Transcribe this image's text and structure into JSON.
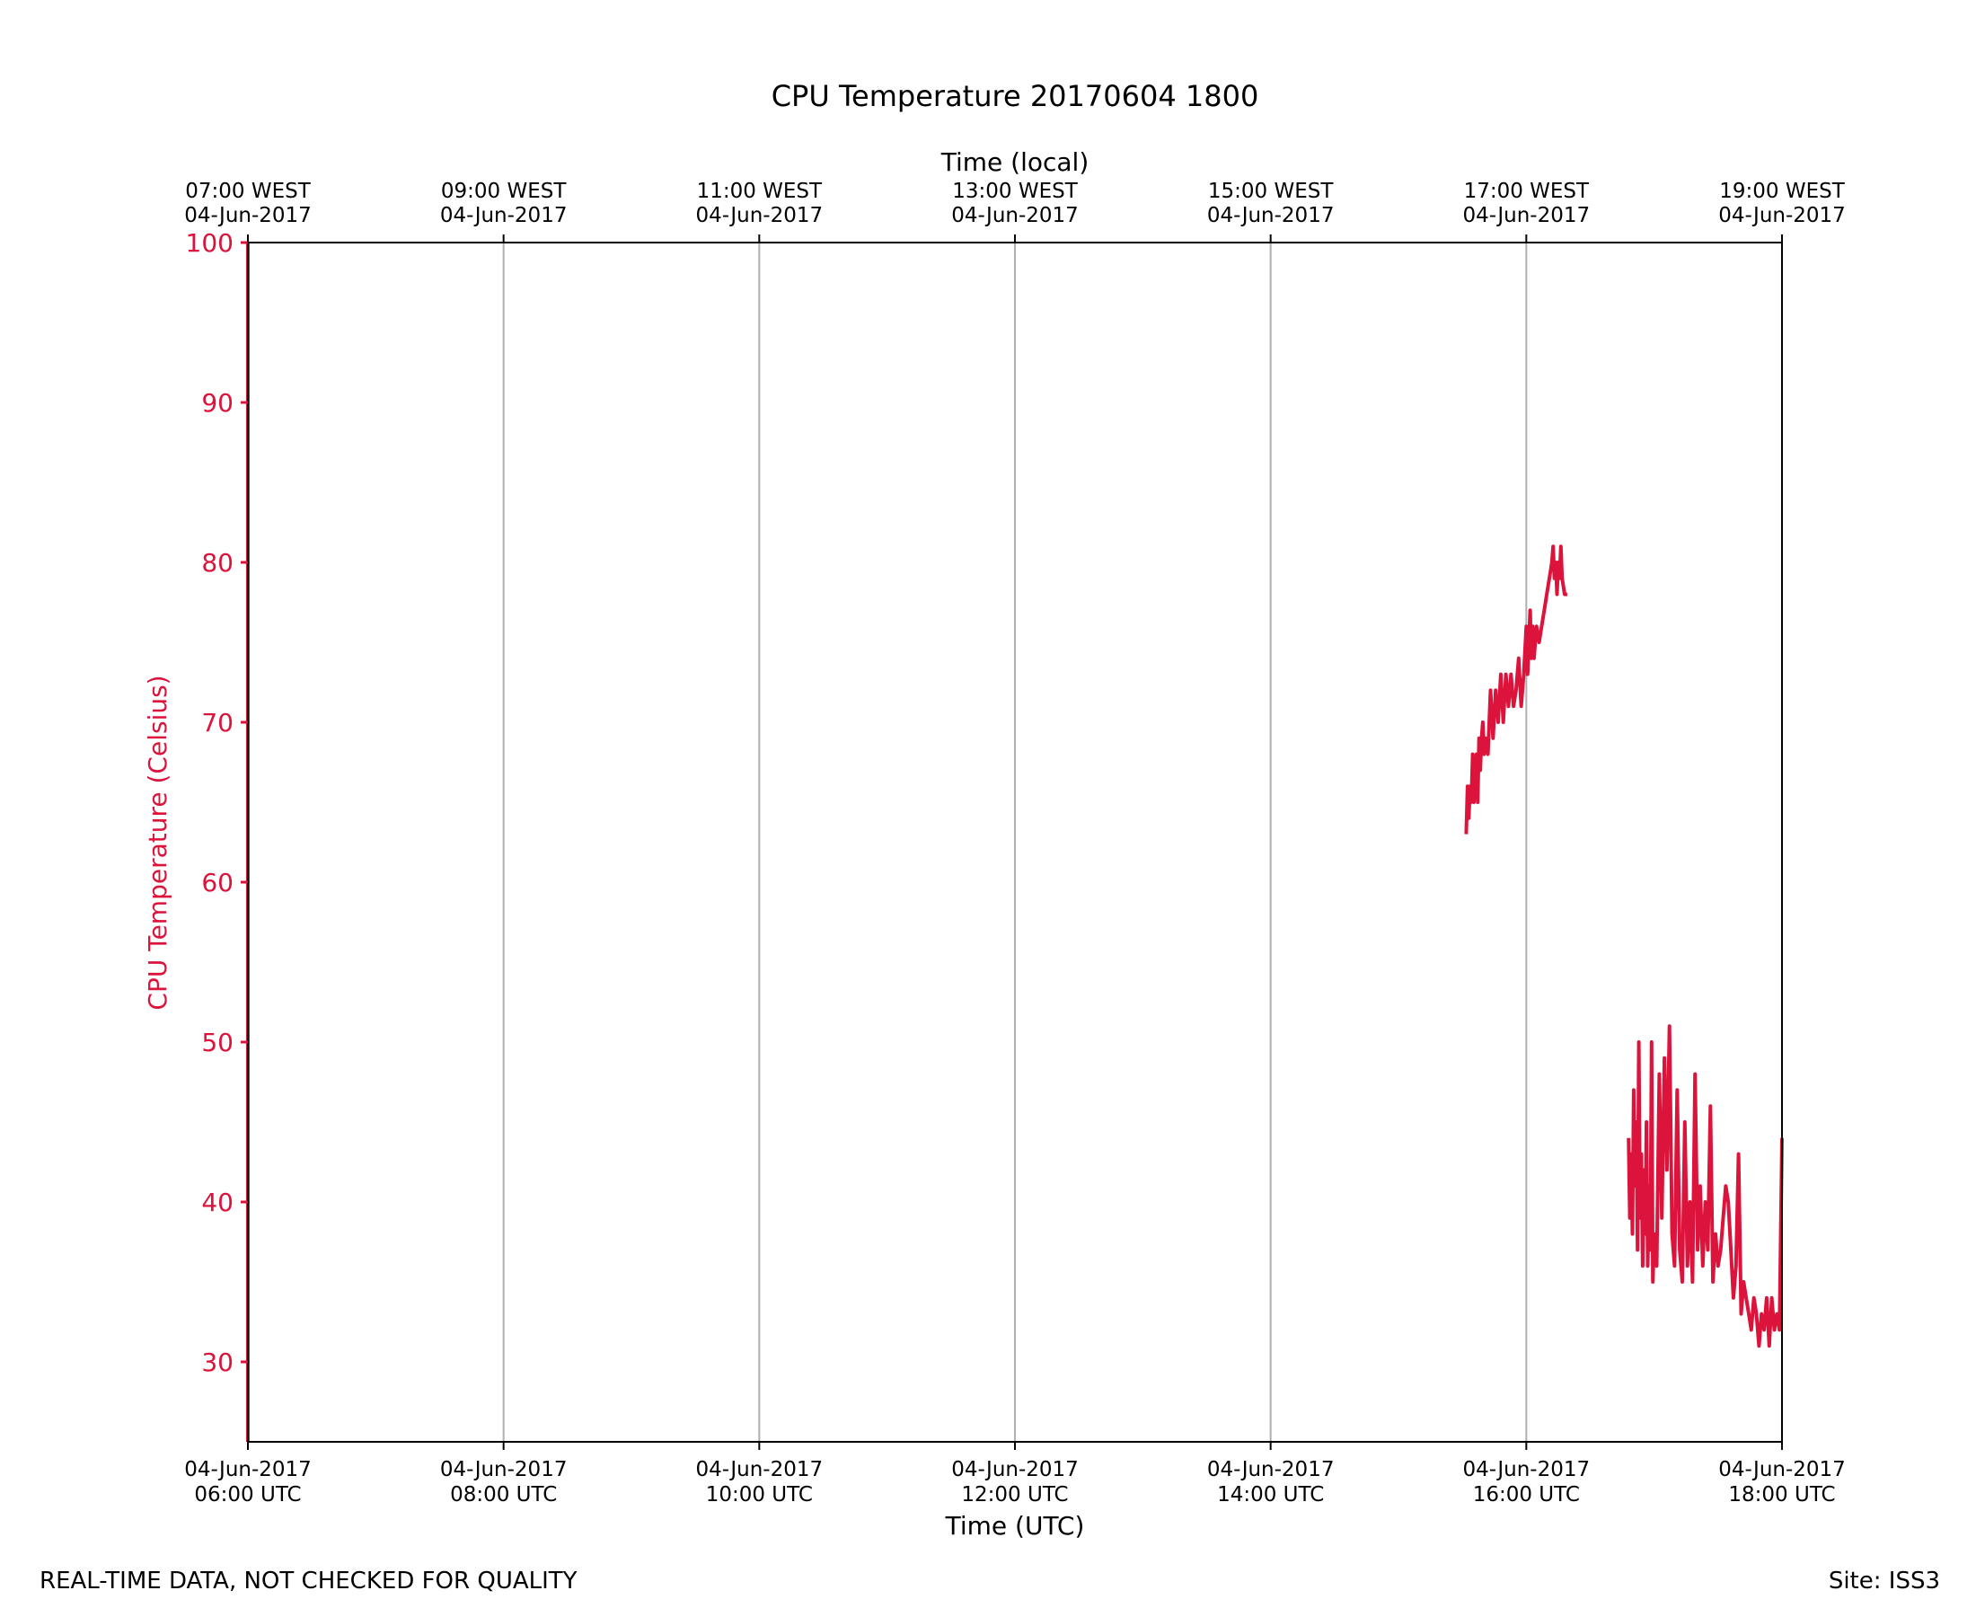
{
  "chart_data": {
    "type": "line",
    "title": "CPU Temperature 20170604 1800",
    "top_axis_label": "Time (local)",
    "xlabel": "Time (UTC)",
    "ylabel": "CPU Temperature (Celsius)",
    "ylim": [
      25,
      100
    ],
    "xlim_hours_utc": [
      6,
      18
    ],
    "yticks": [
      30,
      40,
      50,
      60,
      70,
      80,
      90,
      100
    ],
    "xticks_bottom": [
      {
        "hour": 6,
        "date": "04-Jun-2017",
        "time": "06:00 UTC"
      },
      {
        "hour": 8,
        "date": "04-Jun-2017",
        "time": "08:00 UTC"
      },
      {
        "hour": 10,
        "date": "04-Jun-2017",
        "time": "10:00 UTC"
      },
      {
        "hour": 12,
        "date": "04-Jun-2017",
        "time": "12:00 UTC"
      },
      {
        "hour": 14,
        "date": "04-Jun-2017",
        "time": "14:00 UTC"
      },
      {
        "hour": 16,
        "date": "04-Jun-2017",
        "time": "16:00 UTC"
      },
      {
        "hour": 18,
        "date": "04-Jun-2017",
        "time": "18:00 UTC"
      }
    ],
    "xticks_top": [
      {
        "hour": 6,
        "time": "07:00 WEST",
        "date": "04-Jun-2017"
      },
      {
        "hour": 8,
        "time": "09:00 WEST",
        "date": "04-Jun-2017"
      },
      {
        "hour": 10,
        "time": "11:00 WEST",
        "date": "04-Jun-2017"
      },
      {
        "hour": 12,
        "time": "13:00 WEST",
        "date": "04-Jun-2017"
      },
      {
        "hour": 14,
        "time": "15:00 WEST",
        "date": "04-Jun-2017"
      },
      {
        "hour": 16,
        "time": "17:00 WEST",
        "date": "04-Jun-2017"
      },
      {
        "hour": 18,
        "time": "19:00 WEST",
        "date": "04-Jun-2017"
      }
    ],
    "grid": "vertical",
    "series": [
      {
        "name": "CPU Temperature",
        "color": "#dc143c",
        "segments": [
          {
            "x": [
              6.0,
              6.0
            ],
            "y": [
              25,
              100
            ]
          },
          {
            "x": [
              15.53,
              15.54,
              15.55,
              15.56,
              15.57,
              15.58,
              15.59,
              15.6,
              15.61,
              15.62,
              15.63,
              15.64,
              15.65,
              15.66,
              15.67,
              15.68,
              15.7,
              15.72,
              15.74,
              15.76,
              15.78,
              15.8,
              15.82,
              15.84,
              15.86,
              15.88,
              15.9,
              15.92,
              15.94,
              15.96,
              15.98,
              16.0,
              16.01,
              16.02,
              16.03,
              16.04,
              16.05,
              16.06,
              16.07,
              16.08,
              16.1,
              16.12,
              16.14,
              16.16,
              16.18,
              16.2,
              16.21,
              16.22,
              16.23,
              16.24,
              16.25,
              16.26,
              16.27,
              16.28,
              16.3,
              16.32
            ],
            "y": [
              63,
              66,
              64,
              66,
              65,
              68,
              65,
              67,
              68,
              65,
              69,
              67,
              69,
              70,
              68,
              69,
              68,
              72,
              69,
              72,
              70,
              73,
              70,
              73,
              71,
              73,
              71,
              72,
              74,
              71,
              73,
              76,
              73,
              75,
              77,
              74,
              76,
              74,
              75,
              76,
              75,
              76,
              77,
              78,
              79,
              80,
              81,
              79,
              80,
              78,
              80,
              79,
              81,
              79,
              78,
              78
            ]
          },
          {
            "x": [
              16.8,
              16.81,
              16.82,
              16.83,
              16.84,
              16.85,
              16.86,
              16.87,
              16.88,
              16.89,
              16.9,
              16.91,
              16.92,
              16.93,
              16.94,
              16.95,
              16.96,
              16.97,
              16.98,
              16.99,
              17.0,
              17.02,
              17.04,
              17.06,
              17.08,
              17.1,
              17.12,
              17.14,
              17.16,
              17.18,
              17.2,
              17.22,
              17.24,
              17.26,
              17.28,
              17.3,
              17.32,
              17.34,
              17.36,
              17.38,
              17.4,
              17.42,
              17.44,
              17.46,
              17.48,
              17.5,
              17.52,
              17.54,
              17.56,
              17.58,
              17.6,
              17.62,
              17.64,
              17.66,
              17.68,
              17.7,
              17.72,
              17.74,
              17.76,
              17.78,
              17.8,
              17.82,
              17.84,
              17.86,
              17.88,
              17.9,
              17.92,
              17.94,
              17.96,
              17.98,
              18.0
            ],
            "y": [
              44,
              39,
              43,
              38,
              47,
              41,
              45,
              37,
              50,
              39,
              43,
              36,
              42,
              38,
              45,
              36,
              41,
              37,
              50,
              35,
              38,
              36,
              48,
              39,
              49,
              42,
              51,
              38,
              36,
              47,
              37,
              35,
              45,
              36,
              40,
              35,
              48,
              37,
              41,
              36,
              40,
              37,
              46,
              35,
              38,
              36,
              37,
              39,
              41,
              40,
              37,
              34,
              36,
              43,
              33,
              35,
              34,
              33,
              32,
              34,
              33,
              31,
              33,
              32,
              34,
              31,
              34,
              32,
              33,
              32,
              44
            ]
          }
        ]
      }
    ],
    "footer_left": "REAL-TIME DATA, NOT CHECKED FOR QUALITY",
    "footer_right": "Site: ISS3"
  }
}
